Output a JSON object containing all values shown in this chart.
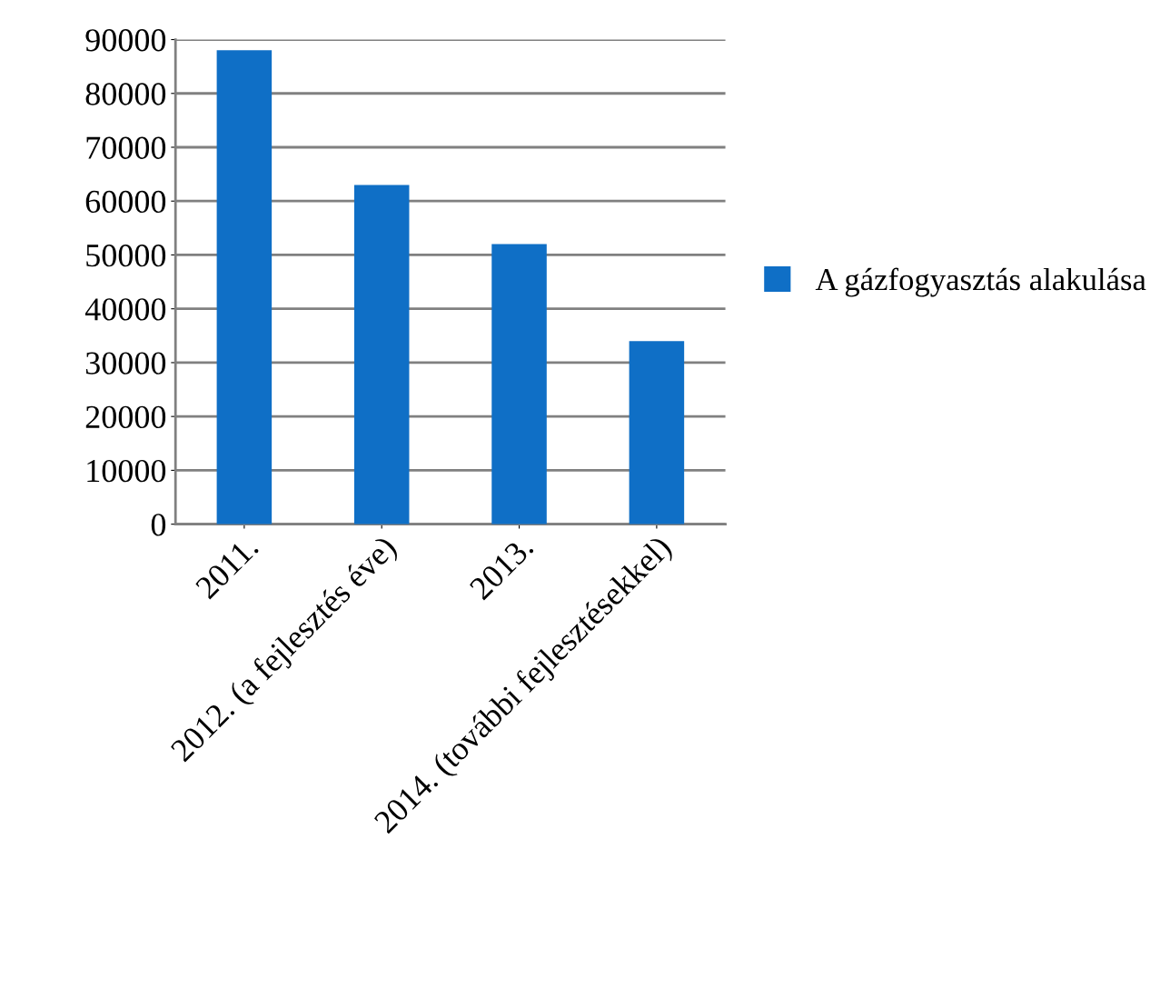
{
  "chart_data": {
    "type": "bar",
    "categories": [
      "2011.",
      "2012. (a fejlesztés éve)",
      "2013.",
      "2014. (további fejlesztésekkel)"
    ],
    "series": [
      {
        "name": "A gázfogyasztás alakulása",
        "color": "#0f6fc6",
        "values": [
          88000,
          63000,
          52000,
          34000
        ]
      }
    ],
    "ylim": [
      0,
      90000
    ],
    "yticks": [
      0,
      10000,
      20000,
      30000,
      40000,
      50000,
      60000,
      70000,
      80000,
      90000
    ],
    "grid": "y",
    "legend": "right"
  }
}
